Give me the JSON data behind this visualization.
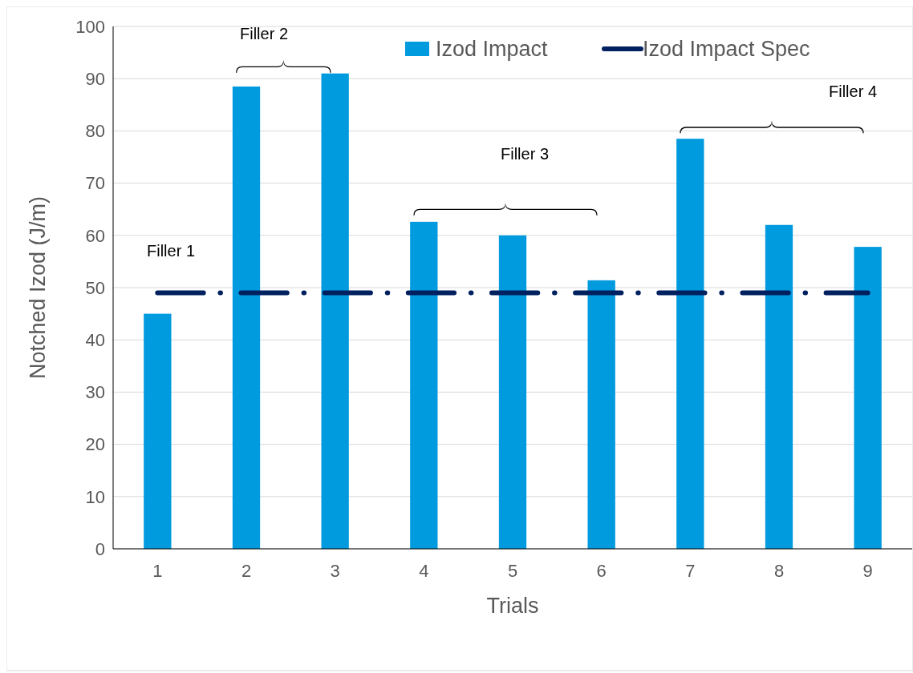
{
  "chart_data": {
    "type": "bar",
    "xlabel": "Trials",
    "ylabel": "Notched Izod (J/m)",
    "categories": [
      "1",
      "2",
      "3",
      "4",
      "5",
      "6",
      "7",
      "8",
      "9"
    ],
    "series": [
      {
        "name": "Izod Impact",
        "color": "#009ade",
        "values": [
          45,
          88.5,
          91,
          62.6,
          60,
          51.4,
          78.5,
          62,
          57.8
        ]
      },
      {
        "name": "Izod Impact Spec",
        "type": "line",
        "color": "#002060",
        "line_style": "dashed",
        "values": [
          49,
          49,
          49,
          49,
          49,
          49,
          49,
          49,
          49
        ]
      }
    ],
    "ylim": [
      0,
      100
    ],
    "yticks": [
      0,
      10,
      20,
      30,
      40,
      50,
      60,
      70,
      80,
      90,
      100
    ],
    "grid": "y",
    "legend": "top right",
    "annotations": [
      "Filler 1",
      "Filler 2",
      "Filler 3",
      "Filler 4"
    ]
  }
}
